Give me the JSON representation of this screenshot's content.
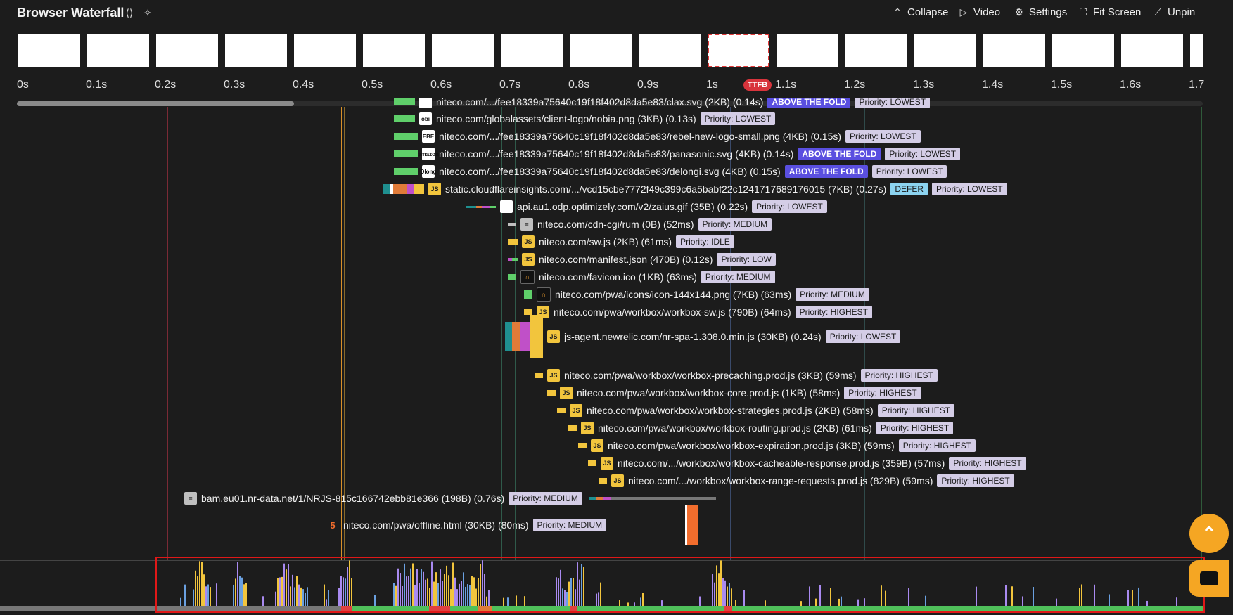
{
  "header": {
    "title": "Browser Waterfall",
    "share_icon": "share-icon",
    "magic_icon": "sparkle-icon",
    "buttons": [
      {
        "label": "Collapse",
        "icon": "chevron-up-icon"
      },
      {
        "label": "Video",
        "icon": "play-icon"
      },
      {
        "label": "Settings",
        "icon": "gear-icon"
      },
      {
        "label": "Fit Screen",
        "icon": "fit-screen-icon"
      },
      {
        "label": "Unpin",
        "icon": "unpin-icon"
      }
    ]
  },
  "filmstrip": {
    "frame_count": 18,
    "active_index": 10
  },
  "timeline": {
    "ticks": [
      "0s",
      "0.1s",
      "0.2s",
      "0.3s",
      "0.4s",
      "0.5s",
      "0.6s",
      "0.7s",
      "0.8s",
      "0.9s",
      "1s",
      "1.1s",
      "1.2s",
      "1.3s",
      "1.4s",
      "1.5s",
      "1.6s",
      "1.7s"
    ],
    "ttfb_label": "TTFB"
  },
  "requests": [
    {
      "text": "niteco.com/.../fee18339a75640c19f18f402d8da5e83/clax.svg (2KB) (0.14s)",
      "icon": "img",
      "icon_text": "",
      "badges": [
        "ABOVE THE FOLD"
      ],
      "priority": "Priority: LOWEST"
    },
    {
      "text": "niteco.com/globalassets/client-logo/nobia.png (3KB) (0.13s)",
      "icon": "img",
      "icon_text": "obi",
      "badges": [],
      "priority": "Priority: LOWEST"
    },
    {
      "text": "niteco.com/.../fee18339a75640c19f18f402d8da5e83/rebel-new-logo-small.png (4KB) (0.15s)",
      "icon": "img",
      "icon_text": "EBE",
      "badges": [],
      "priority": "Priority: LOWEST"
    },
    {
      "text": "niteco.com/.../fee18339a75640c19f18f402d8da5e83/panasonic.svg (4KB) (0.14s)",
      "icon": "img",
      "icon_text": "amazon",
      "badges": [
        "ABOVE THE FOLD"
      ],
      "priority": "Priority: LOWEST"
    },
    {
      "text": "niteco.com/.../fee18339a75640c19f18f402d8da5e83/delongi.svg (4KB) (0.15s)",
      "icon": "img",
      "icon_text": "Dlong",
      "badges": [
        "ABOVE THE FOLD"
      ],
      "priority": "Priority: LOWEST"
    },
    {
      "text": "static.cloudflareinsights.com/.../vcd15cbe7772f49c399c6a5babf22c1241717689176015 (7KB) (0.27s)",
      "icon": "js",
      "icon_text": "JS",
      "badges": [
        "DEFER"
      ],
      "priority": "Priority: LOWEST"
    },
    {
      "text": "api.au1.odp.optimizely.com/v2/zaius.gif (35B) (0.22s)",
      "icon": "img",
      "icon_text": "",
      "badges": [],
      "priority": "Priority: LOWEST"
    },
    {
      "text": "niteco.com/cdn-cgi/rum (0B) (52ms)",
      "icon": "doc",
      "icon_text": "≡",
      "badges": [],
      "priority": "Priority: MEDIUM"
    },
    {
      "text": "niteco.com/sw.js (2KB) (61ms)",
      "icon": "js",
      "icon_text": "JS",
      "badges": [],
      "priority": "Priority: IDLE"
    },
    {
      "text": "niteco.com/manifest.json (470B) (0.12s)",
      "icon": "js",
      "icon_text": "JS",
      "badges": [],
      "priority": "Priority: LOW"
    },
    {
      "text": "niteco.com/favicon.ico (1KB) (63ms)",
      "icon": "nic",
      "icon_text": "∩",
      "badges": [],
      "priority": "Priority: MEDIUM"
    },
    {
      "text": "niteco.com/pwa/icons/icon-144x144.png (7KB) (63ms)",
      "icon": "nic",
      "icon_text": "∩",
      "badges": [],
      "priority": "Priority: MEDIUM"
    },
    {
      "text": "niteco.com/pwa/workbox/workbox-sw.js (790B) (64ms)",
      "icon": "js",
      "icon_text": "JS",
      "badges": [],
      "priority": "Priority: HIGHEST"
    },
    {
      "text": "js-agent.newrelic.com/nr-spa-1.308.0.min.js (30KB) (0.24s)",
      "icon": "js",
      "icon_text": "JS",
      "badges": [],
      "priority": "Priority: LOWEST"
    },
    {
      "text": "niteco.com/pwa/workbox/workbox-precaching.prod.js (3KB) (59ms)",
      "icon": "js",
      "icon_text": "JS",
      "badges": [],
      "priority": "Priority: HIGHEST"
    },
    {
      "text": "niteco.com/pwa/workbox/workbox-core.prod.js (1KB) (58ms)",
      "icon": "js",
      "icon_text": "JS",
      "badges": [],
      "priority": "Priority: HIGHEST"
    },
    {
      "text": "niteco.com/pwa/workbox/workbox-strategies.prod.js (2KB) (58ms)",
      "icon": "js",
      "icon_text": "JS",
      "badges": [],
      "priority": "Priority: HIGHEST"
    },
    {
      "text": "niteco.com/pwa/workbox/workbox-routing.prod.js (2KB) (61ms)",
      "icon": "js",
      "icon_text": "JS",
      "badges": [],
      "priority": "Priority: HIGHEST"
    },
    {
      "text": "niteco.com/pwa/workbox/workbox-expiration.prod.js (3KB) (59ms)",
      "icon": "js",
      "icon_text": "JS",
      "badges": [],
      "priority": "Priority: HIGHEST"
    },
    {
      "text": "niteco.com/.../workbox/workbox-cacheable-response.prod.js (359B) (57ms)",
      "icon": "js",
      "icon_text": "JS",
      "badges": [],
      "priority": "Priority: HIGHEST"
    },
    {
      "text": "niteco.com/.../workbox/workbox-range-requests.prod.js (829B) (59ms)",
      "icon": "js",
      "icon_text": "JS",
      "badges": [],
      "priority": "Priority: HIGHEST"
    },
    {
      "text": "bam.eu01.nr-data.net/1/NRJS-815c166742ebb81e366 (198B) (0.76s)",
      "icon": "doc",
      "icon_text": "≡",
      "badges": [],
      "priority": "Priority: MEDIUM"
    },
    {
      "text": "niteco.com/pwa/offline.html (30KB) (80ms)",
      "icon": "html",
      "icon_text": "5",
      "badges": [],
      "priority": "Priority: MEDIUM"
    }
  ],
  "colors": {
    "dns": "#1f8f8f",
    "connect": "#e07b39",
    "ssl": "#c050c8",
    "wait": "#f2c53d",
    "img": "#5fcf6a",
    "js": "#f2c53d",
    "html": "#f26d2d",
    "doc": "#bfbfbf",
    "above_the_fold": "#5a4fe0",
    "defer": "#8cd3f0",
    "priority_bg": "#d4cde6",
    "accent": "#f5a623",
    "ttfb": "#d8343c",
    "highlight_border": "#e01818"
  },
  "controls": {
    "scroll_top_icon": "chevron-up-icon",
    "chat_icon": "chat-icon"
  }
}
